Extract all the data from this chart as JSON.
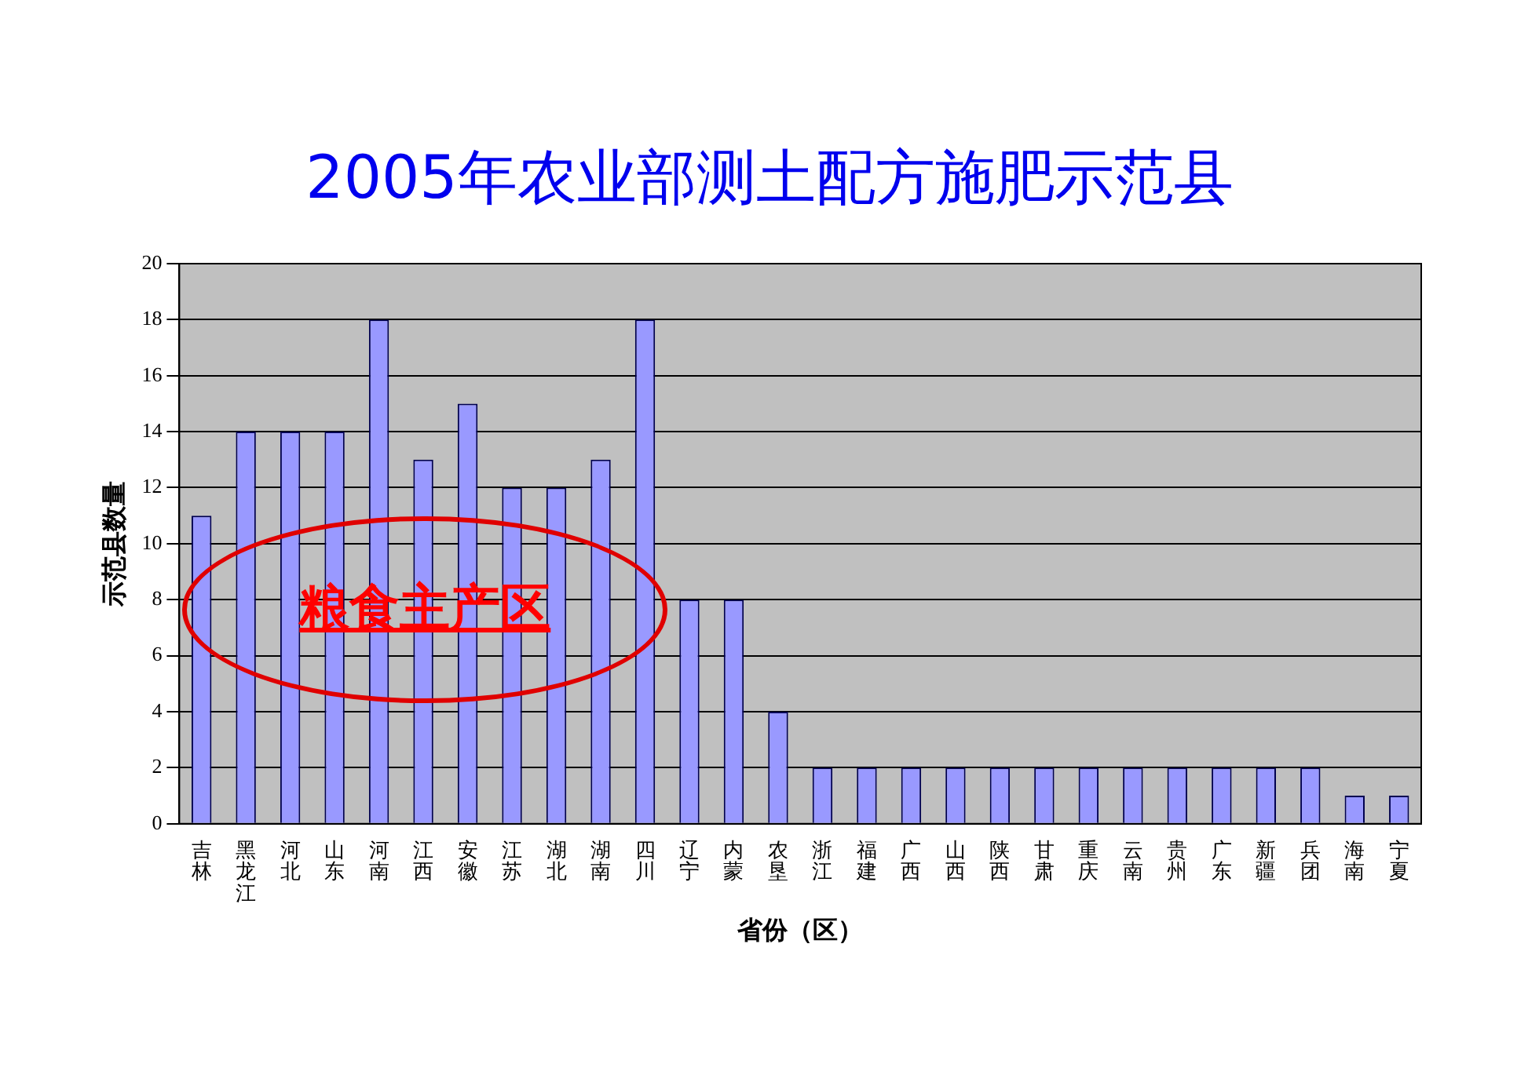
{
  "chart_data": {
    "type": "bar",
    "title": "2005年农业部测土配方施肥示范县",
    "xlabel": "省份（区）",
    "ylabel": "示范县数量",
    "categories": [
      "吉林",
      "黑龙江",
      "河北",
      "山东",
      "河南",
      "江西",
      "安徽",
      "江苏",
      "湖北",
      "湖南",
      "四川",
      "辽宁",
      "内蒙",
      "农垦",
      "浙江",
      "福建",
      "广西",
      "山西",
      "陕西",
      "甘肃",
      "重庆",
      "云南",
      "贵州",
      "广东",
      "新疆",
      "兵团",
      "海南",
      "宁夏"
    ],
    "values": [
      11,
      14,
      14,
      14,
      18,
      13,
      15,
      12,
      12,
      13,
      18,
      8,
      8,
      4,
      2,
      2,
      2,
      2,
      2,
      2,
      2,
      2,
      2,
      2,
      2,
      2,
      1,
      1
    ],
    "color": "#9999ff",
    "ylim": [
      0,
      20
    ],
    "yticks": [
      0,
      2,
      4,
      6,
      8,
      10,
      12,
      14,
      16,
      18,
      20
    ],
    "grid": "y",
    "annotations": [
      "粮食主产区"
    ]
  }
}
